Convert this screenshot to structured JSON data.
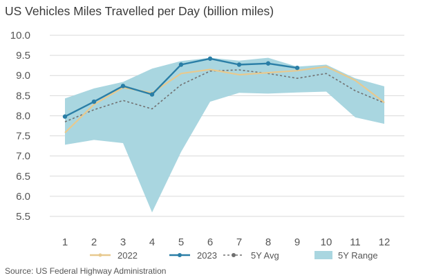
{
  "title": "US Vehicles Miles Travelled per Day (billion miles)",
  "source": "Source: US Federal Highway Administration",
  "chart_data": {
    "type": "line",
    "title": "US Vehicles Miles Travelled per Day (billion miles)",
    "xlabel": "",
    "ylabel": "",
    "x": [
      1,
      2,
      3,
      4,
      5,
      6,
      7,
      8,
      9,
      10,
      11,
      12
    ],
    "ylim": [
      5.5,
      10.0
    ],
    "yticks": [
      "10.0",
      "9.5",
      "9.0",
      "8.5",
      "8.0",
      "7.5",
      "7.0",
      "6.5",
      "6.0",
      "5.5"
    ],
    "xticks": [
      "1",
      "2",
      "3",
      "4",
      "5",
      "6",
      "7",
      "8",
      "9",
      "10",
      "11",
      "12"
    ],
    "grid": "horizontal",
    "legend_position": "bottom",
    "series": [
      {
        "name": "2022",
        "color": "#e8c98e",
        "values": [
          7.58,
          8.28,
          8.7,
          8.57,
          9.05,
          9.15,
          9.02,
          9.07,
          9.12,
          9.22,
          8.88,
          8.33
        ]
      },
      {
        "name": "2023",
        "color": "#2a7ea6",
        "values": [
          7.98,
          8.35,
          8.74,
          8.53,
          9.27,
          9.42,
          9.27,
          9.3,
          9.19,
          null,
          null,
          null
        ]
      },
      {
        "name": "5Y Avg",
        "color": "#707070",
        "values": [
          7.85,
          8.15,
          8.38,
          8.17,
          8.77,
          9.11,
          9.14,
          9.05,
          8.93,
          9.05,
          8.62,
          8.32
        ]
      }
    ],
    "range": {
      "name": "5Y Range",
      "color": "#a9d6e0",
      "low": [
        7.28,
        7.4,
        7.32,
        5.6,
        7.1,
        8.35,
        8.57,
        8.55,
        8.58,
        8.6,
        7.96,
        7.8
      ],
      "high": [
        8.43,
        8.68,
        8.84,
        9.17,
        9.36,
        9.44,
        9.37,
        9.44,
        9.22,
        9.27,
        8.93,
        8.73
      ]
    }
  }
}
